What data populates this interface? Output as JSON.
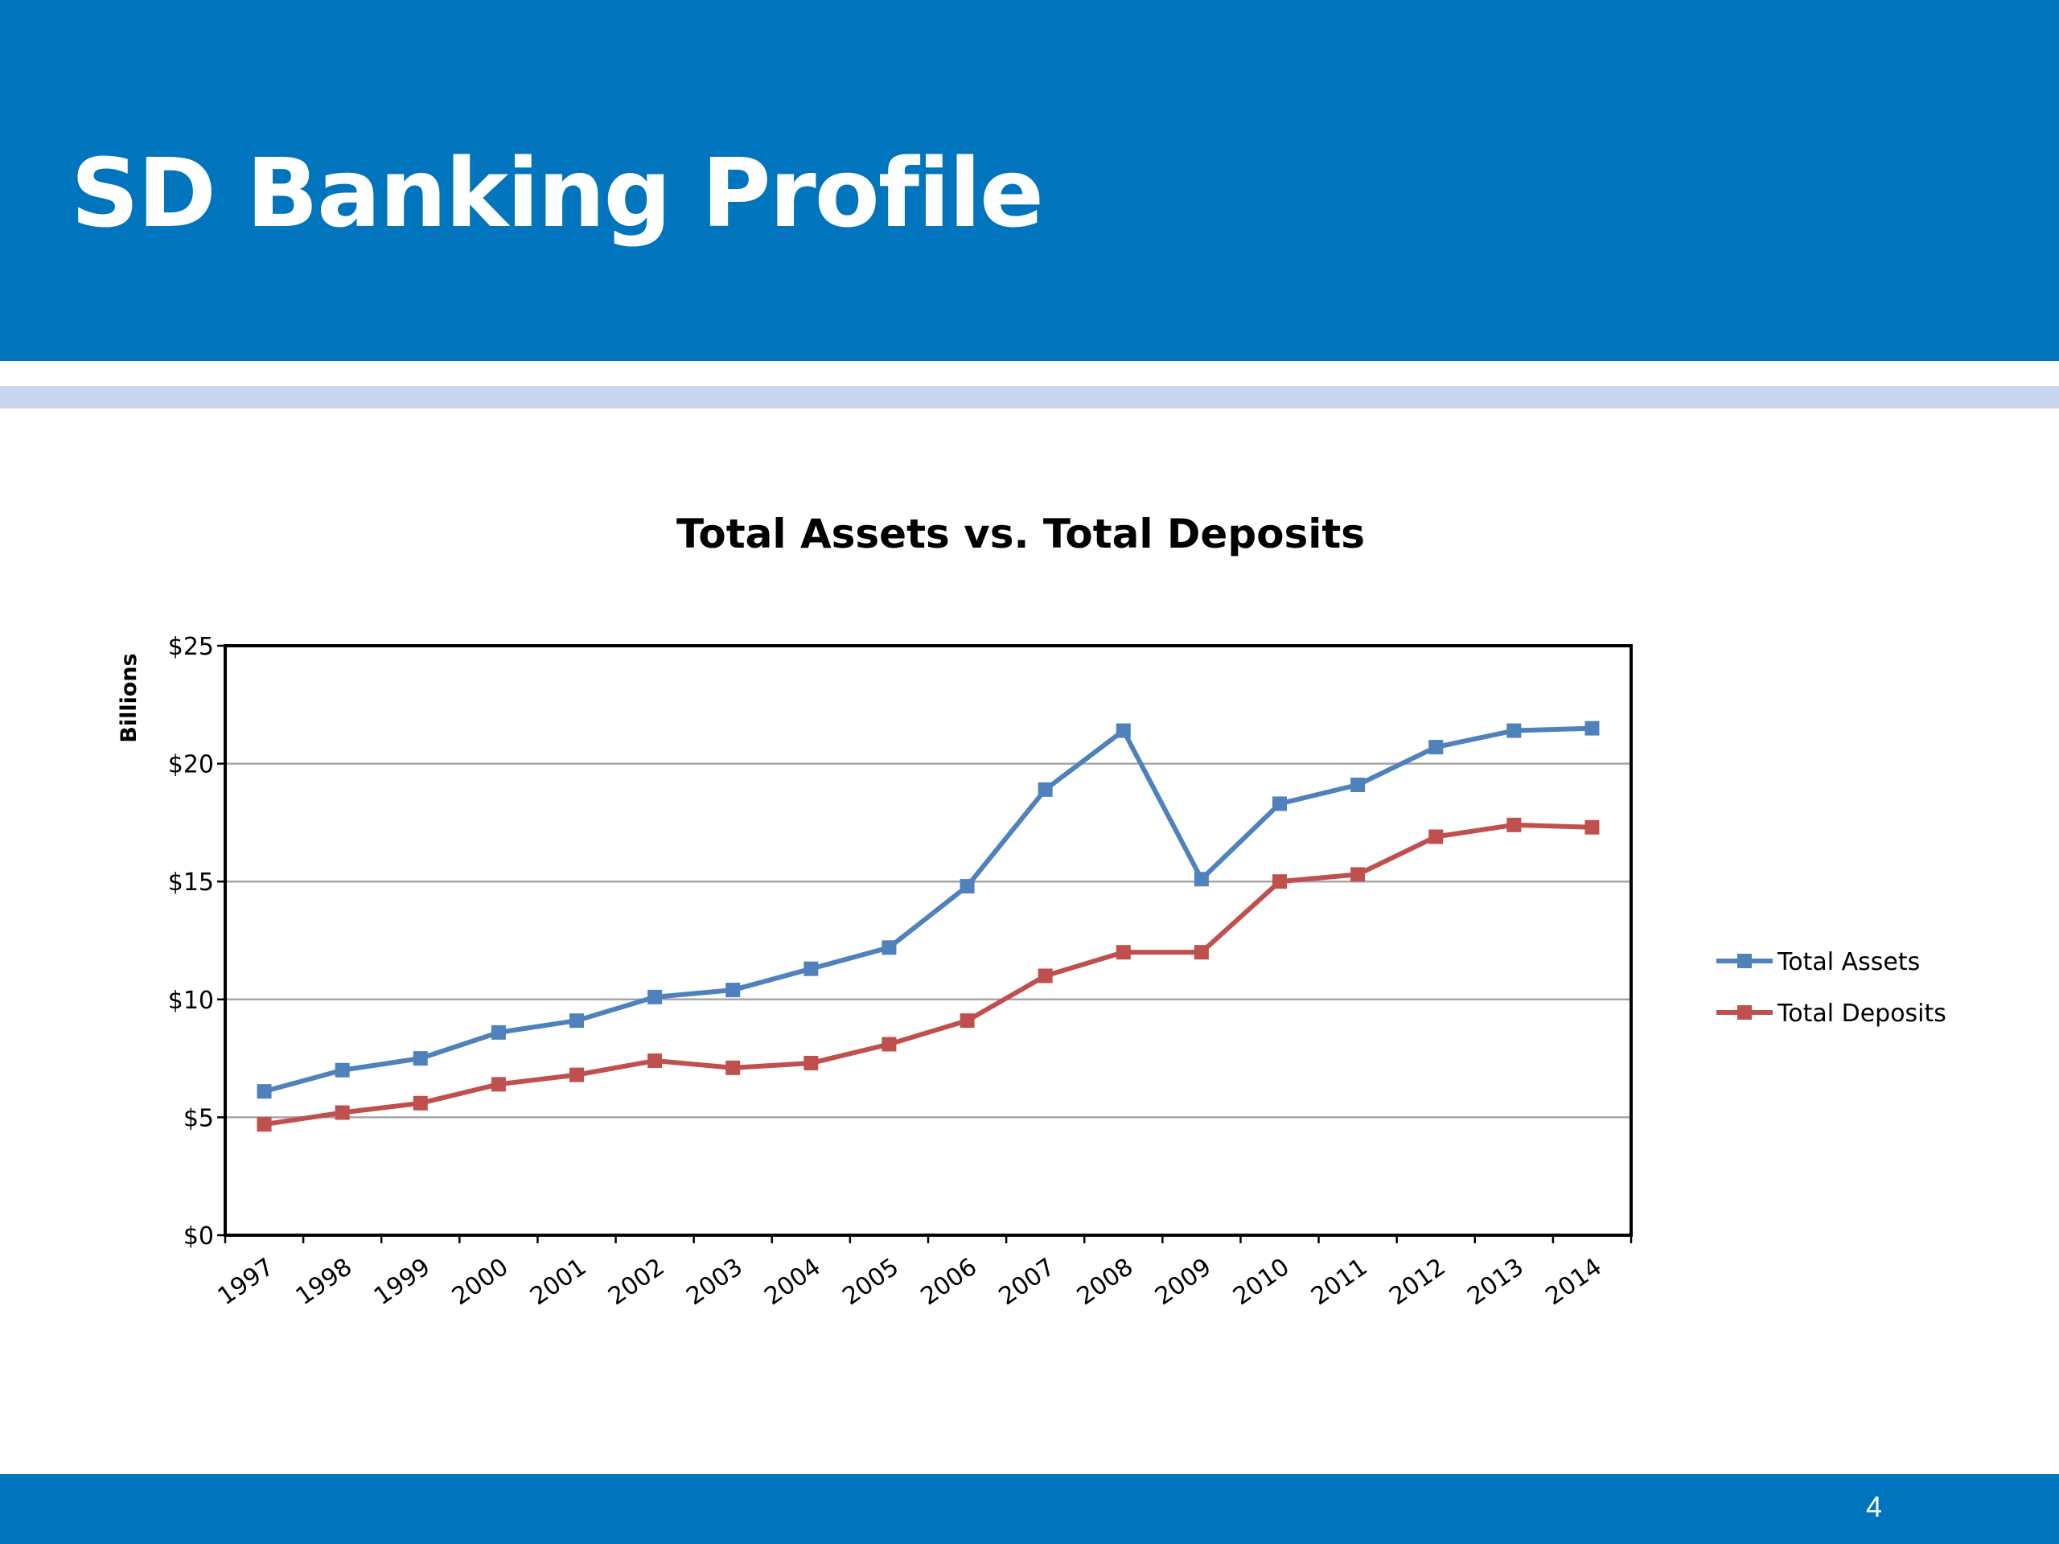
{
  "slide": {
    "title": "SD Banking Profile",
    "page_number": "4"
  },
  "colors": {
    "header_blue": "#0075BD",
    "accent_stripe": "#C7D6EE",
    "assets_series": "#4F81BD",
    "deposits_series": "#C0504D",
    "gridline": "#A6A6A6"
  },
  "chart_data": {
    "type": "line",
    "title": "Total Assets vs. Total Deposits",
    "ylabel": "Billions",
    "xlabel": "",
    "ylim": [
      0,
      25
    ],
    "y_ticks": [
      "$0",
      "$5",
      "$10",
      "$15",
      "$20",
      "$25"
    ],
    "grid": true,
    "legend_position": "right",
    "categories": [
      "1997",
      "1998",
      "1999",
      "2000",
      "2001",
      "2002",
      "2003",
      "2004",
      "2005",
      "2006",
      "2007",
      "2008",
      "2009",
      "2010",
      "2011",
      "2012",
      "2013",
      "2014"
    ],
    "series": [
      {
        "name": "Total Assets",
        "color": "#4F81BD",
        "marker": "square",
        "values": [
          6.1,
          7.0,
          7.5,
          8.6,
          9.1,
          10.1,
          10.4,
          11.3,
          12.2,
          14.8,
          18.9,
          21.4,
          15.1,
          18.3,
          19.1,
          20.7,
          21.4,
          21.5
        ]
      },
      {
        "name": "Total Deposits",
        "color": "#C0504D",
        "marker": "square",
        "values": [
          4.7,
          5.2,
          5.6,
          6.4,
          6.8,
          7.4,
          7.1,
          7.3,
          8.1,
          9.1,
          11.0,
          12.0,
          12.0,
          15.0,
          15.3,
          16.9,
          17.4,
          17.3
        ]
      }
    ]
  }
}
